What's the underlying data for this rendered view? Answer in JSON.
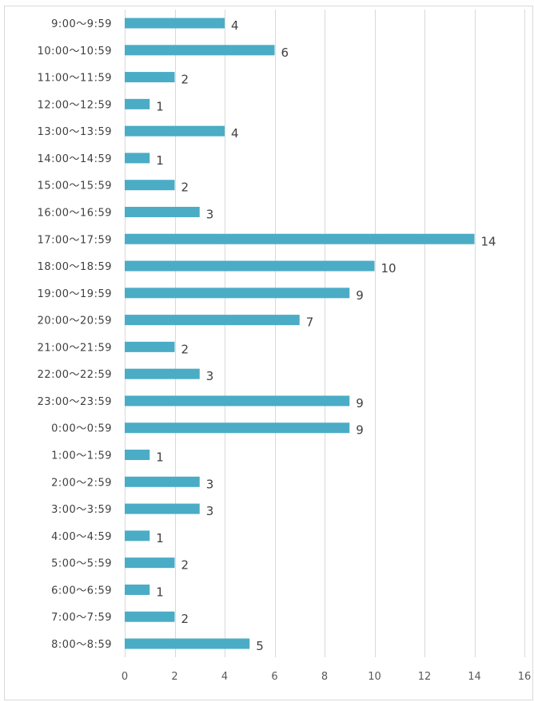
{
  "chart_data": {
    "type": "bar",
    "orientation": "horizontal",
    "title": "",
    "xlabel": "",
    "ylabel": "",
    "categories": [
      "9:00〜9:59",
      "10:00〜10:59",
      "11:00〜11:59",
      "12:00〜12:59",
      "13:00〜13:59",
      "14:00〜14:59",
      "15:00〜15:59",
      "16:00〜16:59",
      "17:00〜17:59",
      "18:00〜18:59",
      "19:00〜19:59",
      "20:00〜20:59",
      "21:00〜21:59",
      "22:00〜22:59",
      "23:00〜23:59",
      "0:00〜0:59",
      "1:00〜1:59",
      "2:00〜2:59",
      "3:00〜3:59",
      "4:00〜4:59",
      "5:00〜5:59",
      "6:00〜6:59",
      "7:00〜7:59",
      "8:00〜8:59"
    ],
    "values": [
      4,
      6,
      2,
      1,
      4,
      1,
      2,
      3,
      14,
      10,
      9,
      7,
      2,
      3,
      9,
      9,
      1,
      3,
      3,
      1,
      2,
      1,
      2,
      5
    ],
    "xlim": [
      0,
      16
    ],
    "xticks": [
      "0",
      "2",
      "4",
      "6",
      "8",
      "10",
      "12",
      "14",
      "16"
    ],
    "grid": true,
    "legend": "none",
    "data_labels": true,
    "bar_color": "#4bacc6"
  }
}
